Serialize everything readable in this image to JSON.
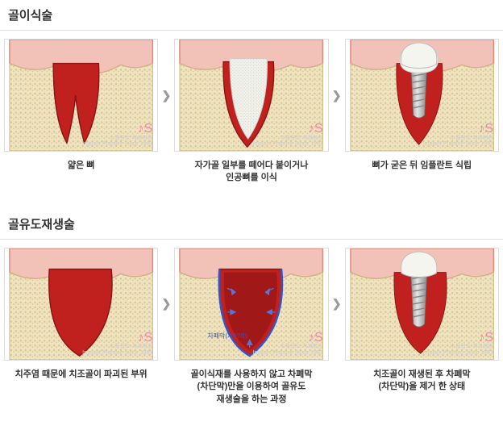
{
  "sections": [
    {
      "title": "골이식술",
      "steps": [
        {
          "caption": "얇은 뼈"
        },
        {
          "caption": "자가골 일부를 떼어다 붙이거나\n인공뼈를 이식"
        },
        {
          "caption": "뼈가 굳은 뒤 임플란트 식립"
        }
      ]
    },
    {
      "title": "골유도재생술",
      "steps": [
        {
          "caption": "치주염 때문에 치조골이 파괴된 부위"
        },
        {
          "caption": "골이식재를 사용하지 않고 차폐막\n(차단막)만을 이용하여 골유도\n재생술을 하는 과정",
          "membrane_label": "차폐막(차단막)"
        },
        {
          "caption": "치조골이 재생된 후 차폐막\n(차단막)을 제거 한 상태"
        }
      ]
    }
  ],
  "colors": {
    "gum": "#f2c2b8",
    "gum_edge": "#d98b7a",
    "bone": "#f0e4c0",
    "bone_dot": "#d4c494",
    "bone_outline": "#c9b880",
    "socket": "#c0211e",
    "socket_dark": "#8b1512",
    "graft": "#e8e8e0",
    "implant": "#b8b8b8",
    "implant_light": "#e0e0e0",
    "crown": "#f5f5f0",
    "membrane": "#3355cc",
    "blood": "#a01818"
  },
  "watermark": {
    "logo": "♪S",
    "text": "수플란트 치과병원",
    "sub": "Implant Practice Since 1993"
  }
}
